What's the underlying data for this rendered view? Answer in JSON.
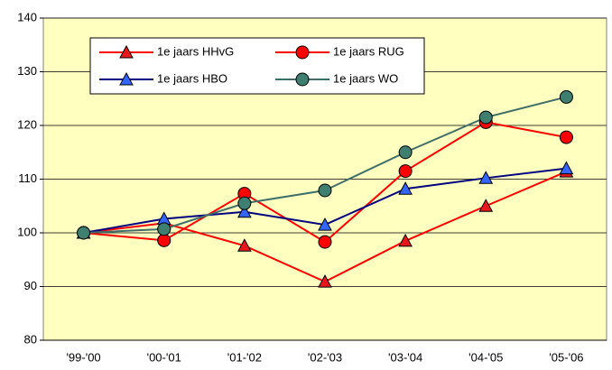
{
  "chart_data": {
    "type": "line",
    "categories": [
      "'99-'00",
      "'00-'01",
      "'01-'02",
      "'02-'03",
      "'03-'04",
      "'04-'05",
      "'05-'06"
    ],
    "series": [
      {
        "name": "1e jaars HHvG",
        "color": "#ff0000",
        "marker": "triangle",
        "marker_color": "#e8171b",
        "values": [
          100,
          101.8,
          97.6,
          90.9,
          98.5,
          105,
          111.4
        ]
      },
      {
        "name": "1e jaars RUG",
        "color": "#ff0000",
        "marker": "circle",
        "marker_color": "#ff0000",
        "values": [
          100,
          98.6,
          107.3,
          98.3,
          111.5,
          120.6,
          117.8
        ]
      },
      {
        "name": "1e jaars HBO",
        "color": "#000080",
        "marker": "triangle",
        "marker_color": "#3366ff",
        "values": [
          100,
          102.6,
          103.9,
          101.5,
          108.2,
          110.2,
          112
        ]
      },
      {
        "name": "1e jaars WO",
        "color": "#3f6e6a",
        "marker": "circle",
        "marker_color": "#3f7f6f",
        "values": [
          100,
          100.7,
          105.5,
          107.9,
          115,
          121.5,
          125.3
        ]
      }
    ],
    "ylim": [
      80,
      140
    ],
    "yticks": [
      80,
      90,
      100,
      110,
      120,
      130,
      140
    ],
    "grid": true,
    "plot_background": "#ffffc0"
  }
}
